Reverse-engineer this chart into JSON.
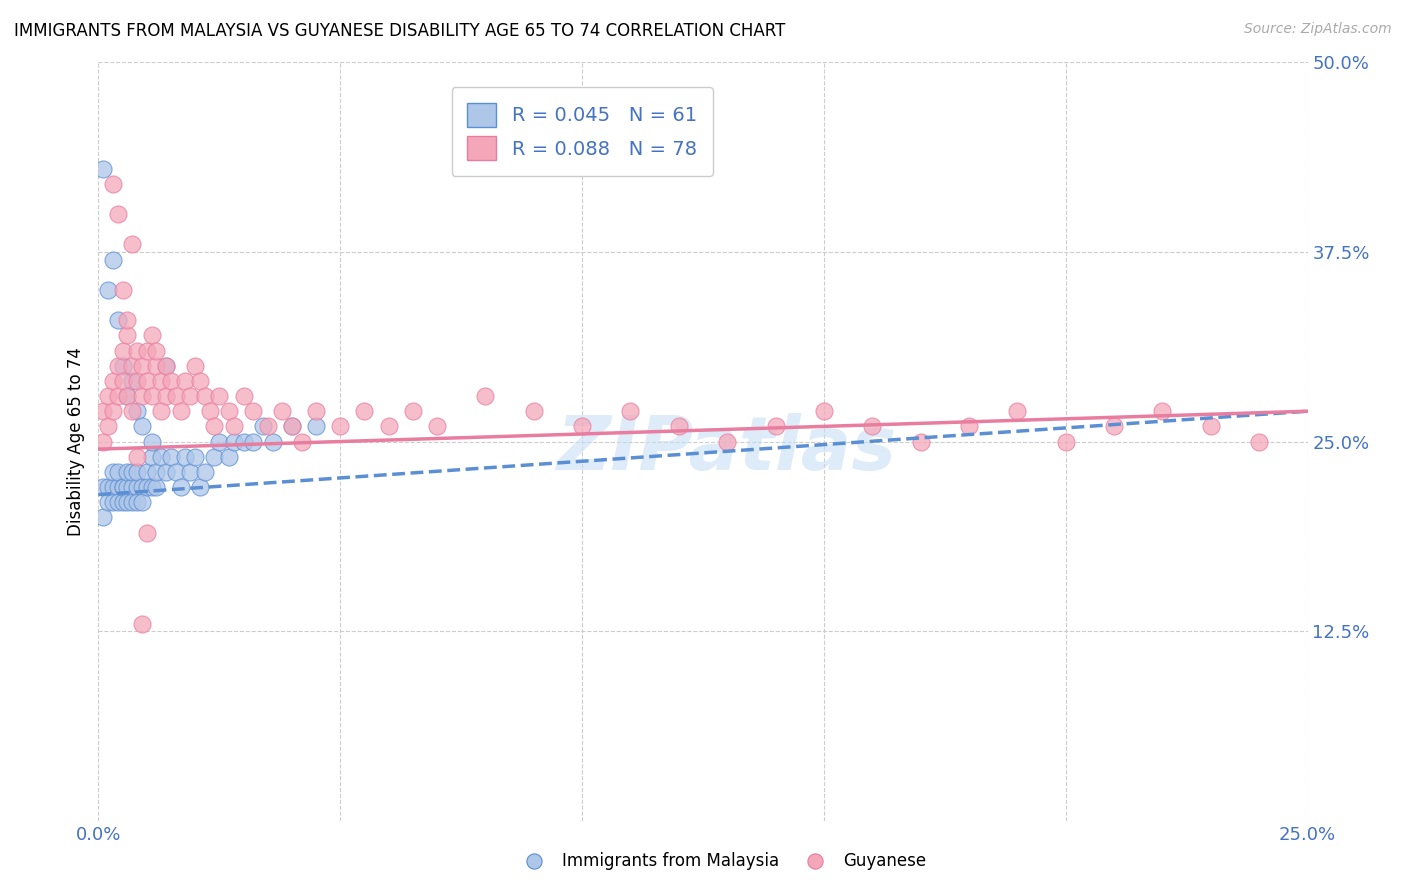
{
  "title": "IMMIGRANTS FROM MALAYSIA VS GUYANESE DISABILITY AGE 65 TO 74 CORRELATION CHART",
  "source": "Source: ZipAtlas.com",
  "ylabel": "Disability Age 65 to 74",
  "xlim": [
    0.0,
    0.25
  ],
  "ylim": [
    0.0,
    0.5
  ],
  "ytick_labels": [
    "12.5%",
    "25.0%",
    "37.5%",
    "50.0%"
  ],
  "ytick_values": [
    0.125,
    0.25,
    0.375,
    0.5
  ],
  "xtick_values": [
    0.0,
    0.05,
    0.1,
    0.15,
    0.2,
    0.25
  ],
  "xtick_labels_show": [
    "0.0%",
    "",
    "",
    "",
    "",
    "25.0%"
  ],
  "legend_r1": "R = 0.045",
  "legend_n1": "N = 61",
  "legend_r2": "R = 0.088",
  "legend_n2": "N = 78",
  "color_malaysia": "#aec6e8",
  "color_guyanese": "#f4a7b9",
  "color_line_malaysia": "#5b8fd4",
  "color_line_guyanese": "#e87da0",
  "color_accent": "#4472c4",
  "watermark": "ZIPatlas",
  "malaysia_x": [
    0.001,
    0.001,
    0.002,
    0.002,
    0.003,
    0.003,
    0.003,
    0.004,
    0.004,
    0.004,
    0.005,
    0.005,
    0.005,
    0.006,
    0.006,
    0.006,
    0.007,
    0.007,
    0.007,
    0.008,
    0.008,
    0.008,
    0.009,
    0.009,
    0.01,
    0.01,
    0.011,
    0.011,
    0.012,
    0.012,
    0.013,
    0.014,
    0.015,
    0.016,
    0.017,
    0.018,
    0.019,
    0.02,
    0.021,
    0.022,
    0.024,
    0.025,
    0.027,
    0.028,
    0.03,
    0.032,
    0.034,
    0.036,
    0.04,
    0.045,
    0.002,
    0.003,
    0.004,
    0.005,
    0.006,
    0.007,
    0.008,
    0.009,
    0.011,
    0.014,
    0.001
  ],
  "malaysia_y": [
    0.22,
    0.2,
    0.22,
    0.21,
    0.22,
    0.21,
    0.23,
    0.22,
    0.21,
    0.23,
    0.22,
    0.21,
    0.22,
    0.22,
    0.23,
    0.21,
    0.22,
    0.23,
    0.21,
    0.22,
    0.23,
    0.21,
    0.22,
    0.21,
    0.23,
    0.22,
    0.22,
    0.24,
    0.22,
    0.23,
    0.24,
    0.23,
    0.24,
    0.23,
    0.22,
    0.24,
    0.23,
    0.24,
    0.22,
    0.23,
    0.24,
    0.25,
    0.24,
    0.25,
    0.25,
    0.25,
    0.26,
    0.25,
    0.26,
    0.26,
    0.35,
    0.37,
    0.33,
    0.3,
    0.28,
    0.29,
    0.27,
    0.26,
    0.25,
    0.3,
    0.43
  ],
  "guyanese_x": [
    0.001,
    0.001,
    0.002,
    0.002,
    0.003,
    0.003,
    0.004,
    0.004,
    0.005,
    0.005,
    0.006,
    0.006,
    0.007,
    0.007,
    0.008,
    0.008,
    0.009,
    0.009,
    0.01,
    0.01,
    0.011,
    0.011,
    0.012,
    0.012,
    0.013,
    0.013,
    0.014,
    0.014,
    0.015,
    0.016,
    0.017,
    0.018,
    0.019,
    0.02,
    0.021,
    0.022,
    0.023,
    0.024,
    0.025,
    0.027,
    0.028,
    0.03,
    0.032,
    0.035,
    0.038,
    0.04,
    0.042,
    0.045,
    0.05,
    0.055,
    0.06,
    0.065,
    0.07,
    0.08,
    0.09,
    0.1,
    0.11,
    0.12,
    0.13,
    0.14,
    0.15,
    0.16,
    0.17,
    0.18,
    0.19,
    0.2,
    0.21,
    0.22,
    0.23,
    0.24,
    0.003,
    0.004,
    0.005,
    0.006,
    0.007,
    0.008,
    0.009,
    0.01
  ],
  "guyanese_y": [
    0.25,
    0.27,
    0.26,
    0.28,
    0.27,
    0.29,
    0.28,
    0.3,
    0.29,
    0.31,
    0.28,
    0.32,
    0.3,
    0.27,
    0.31,
    0.29,
    0.3,
    0.28,
    0.31,
    0.29,
    0.32,
    0.28,
    0.3,
    0.31,
    0.29,
    0.27,
    0.3,
    0.28,
    0.29,
    0.28,
    0.27,
    0.29,
    0.28,
    0.3,
    0.29,
    0.28,
    0.27,
    0.26,
    0.28,
    0.27,
    0.26,
    0.28,
    0.27,
    0.26,
    0.27,
    0.26,
    0.25,
    0.27,
    0.26,
    0.27,
    0.26,
    0.27,
    0.26,
    0.28,
    0.27,
    0.26,
    0.27,
    0.26,
    0.25,
    0.26,
    0.27,
    0.26,
    0.25,
    0.26,
    0.27,
    0.25,
    0.26,
    0.27,
    0.26,
    0.25,
    0.42,
    0.4,
    0.35,
    0.33,
    0.38,
    0.24,
    0.13,
    0.19
  ]
}
